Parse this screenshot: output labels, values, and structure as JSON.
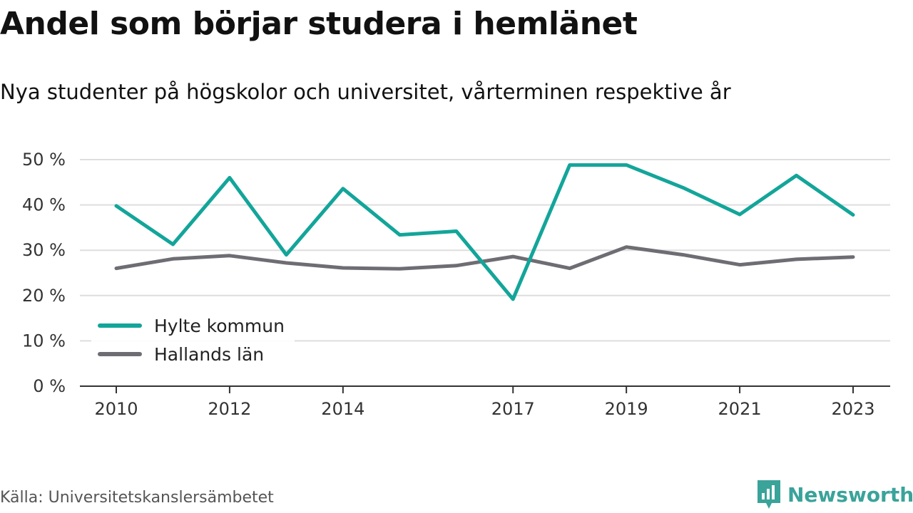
{
  "title": "Andel som börjar studera i hemlänet",
  "subtitle": "Nya studenter på högskolor och universitet, vårterminen respektive år",
  "source": "Källa: Universitetskanslersämbetet",
  "brand": {
    "name": "Newsworthy",
    "icon": "newsworthy-logo-icon",
    "color": "#3aa39a"
  },
  "chart_data": {
    "type": "line",
    "x": [
      2010,
      2011,
      2012,
      2013,
      2014,
      2015,
      2016,
      2017,
      2018,
      2019,
      2020,
      2021,
      2022,
      2023
    ],
    "x_tick_labels": [
      "2010",
      "2012",
      "2014",
      "2017",
      "2019",
      "2021",
      "2023"
    ],
    "y_tick_labels": [
      "0 %",
      "10 %",
      "20 %",
      "30 %",
      "40 %",
      "50 %"
    ],
    "ylim": [
      0,
      50
    ],
    "grid": true,
    "legend": "bottom-left",
    "series": [
      {
        "name": "Hylte kommun",
        "color": "#13a59a",
        "values": [
          39.8,
          31.3,
          46.0,
          29.0,
          43.6,
          33.4,
          34.2,
          19.2,
          48.8,
          48.8,
          43.8,
          37.9,
          46.5,
          37.8
        ]
      },
      {
        "name": "Hallands län",
        "color": "#6e6d73",
        "values": [
          26.0,
          28.1,
          28.8,
          27.2,
          26.1,
          25.9,
          26.6,
          28.6,
          26.0,
          30.7,
          29.0,
          26.8,
          28.0,
          28.5
        ]
      }
    ]
  }
}
